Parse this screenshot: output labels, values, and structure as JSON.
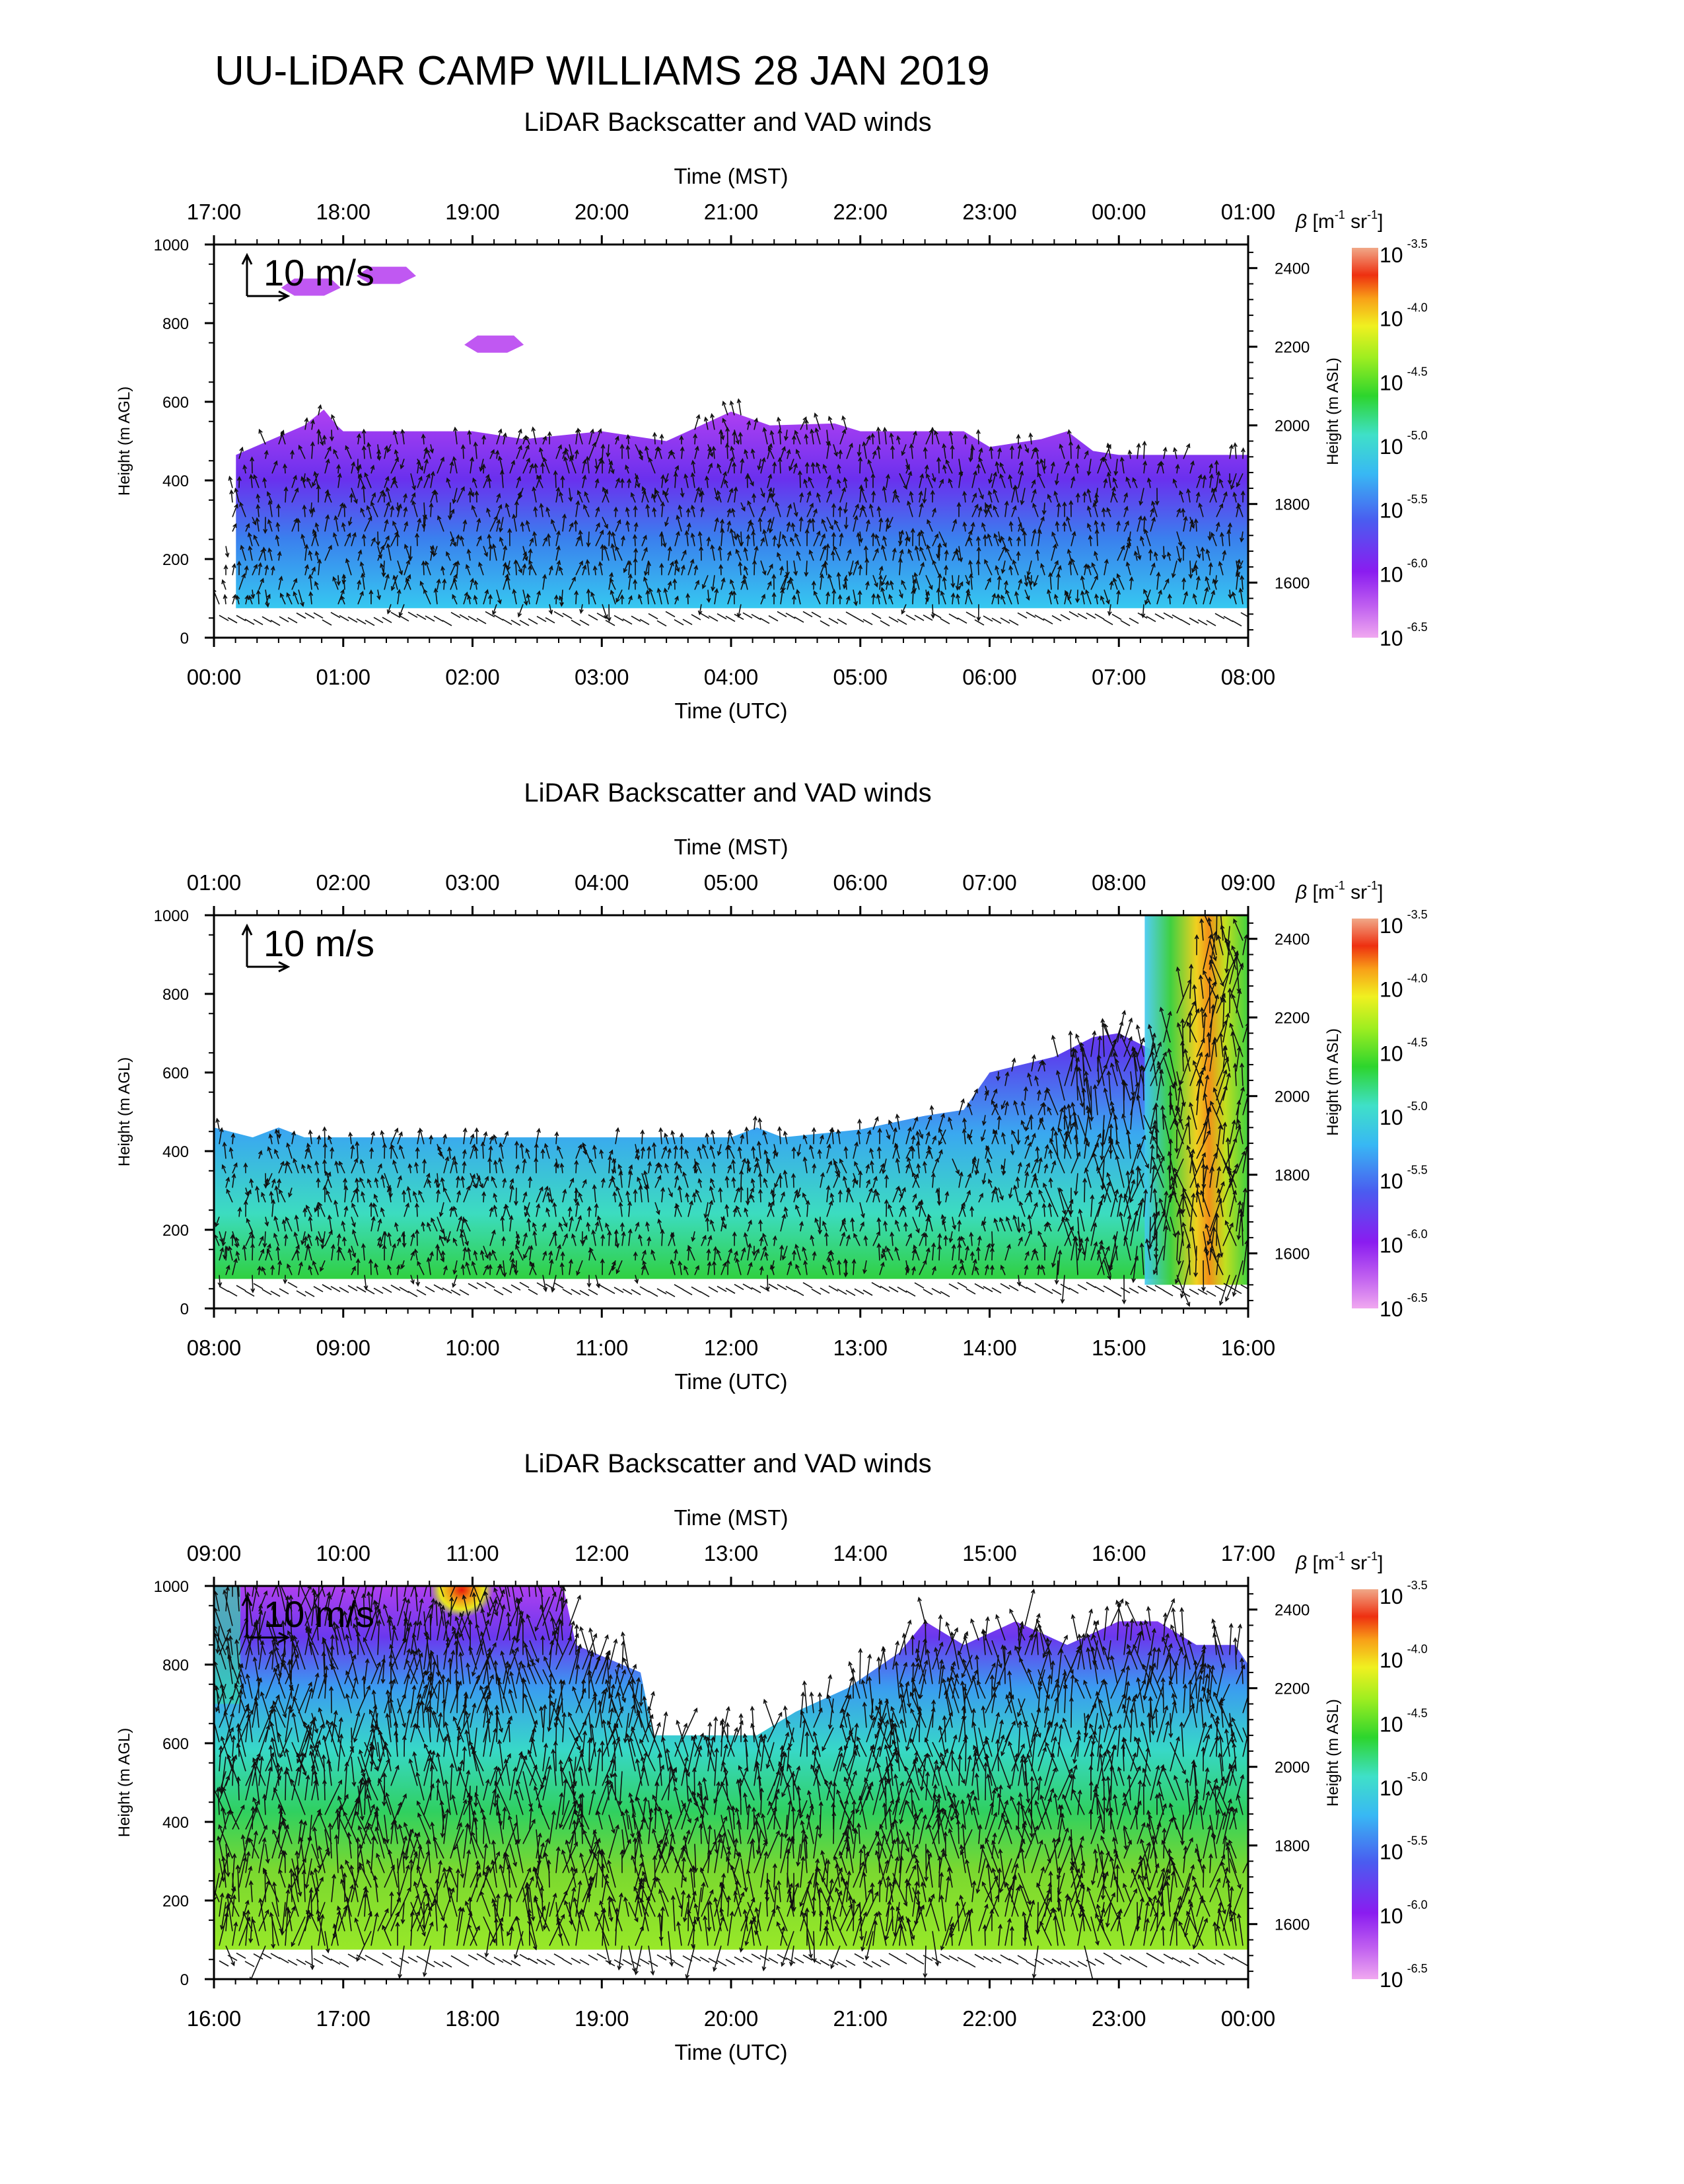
{
  "figure": {
    "title": "UU-LiDAR CAMP WILLIAMS 28 JAN 2019"
  },
  "chart_data": [
    {
      "type": "heatmap",
      "title": "LiDAR Backscatter and VAD winds",
      "xlabel": "Time (UTC)",
      "x2label": "Time (MST)",
      "ylabel": "Height (m AGL)",
      "y2label": "Height (m ASL)",
      "xlim": [
        "00:00",
        "08:00"
      ],
      "ylim": [
        0,
        1000
      ],
      "y2lim": [
        1460,
        2460
      ],
      "x_ticks": [
        "00:00",
        "01:00",
        "02:00",
        "03:00",
        "04:00",
        "05:00",
        "06:00",
        "07:00",
        "08:00"
      ],
      "x2_ticks": [
        "17:00",
        "18:00",
        "19:00",
        "20:00",
        "21:00",
        "22:00",
        "23:00",
        "00:00",
        "01:00"
      ],
      "y_ticks": [
        0,
        200,
        400,
        600,
        800,
        1000
      ],
      "y2_ticks": [
        1600,
        1800,
        2000,
        2200,
        2400
      ],
      "wind_scale_label": "10 m/s",
      "colorbar": {
        "label": "β [m-1 sr-1]",
        "base": "10",
        "exponents": [
          "-3.5",
          "-4.0",
          "-4.5",
          "-5.0",
          "-5.5",
          "-6.0",
          "-6.5"
        ],
        "scale": "log",
        "range": [
          -6.5,
          -3.5
        ]
      },
      "backscatter_top_m": [
        [
          0.0,
          0
        ],
        [
          0.17,
          465
        ],
        [
          0.7,
          540
        ],
        [
          0.85,
          580
        ],
        [
          0.95,
          540
        ],
        [
          1.0,
          525
        ],
        [
          2.0,
          525
        ],
        [
          2.4,
          505
        ],
        [
          3.0,
          525
        ],
        [
          3.5,
          500
        ],
        [
          3.8,
          545
        ],
        [
          4.0,
          575
        ],
        [
          4.3,
          540
        ],
        [
          4.8,
          545
        ],
        [
          5.0,
          525
        ],
        [
          5.8,
          525
        ],
        [
          6.0,
          485
        ],
        [
          6.4,
          505
        ],
        [
          6.6,
          525
        ],
        [
          6.8,
          475
        ],
        [
          7.0,
          465
        ],
        [
          8.0,
          465
        ]
      ],
      "backscatter_base_m": 75,
      "aloft_patches": [
        {
          "time_utc": "00:45",
          "height_m": 890
        },
        {
          "time_utc": "01:20",
          "height_m": 920
        },
        {
          "time_utc": "02:10",
          "height_m": 745
        }
      ],
      "wind_vectors": "mostly northerly-pointing arrows (~2-6 m/s) 75-550 m"
    },
    {
      "type": "heatmap",
      "title": "LiDAR Backscatter and VAD winds",
      "xlabel": "Time (UTC)",
      "x2label": "Time (MST)",
      "ylabel": "Height (m AGL)",
      "y2label": "Height (m ASL)",
      "xlim": [
        "08:00",
        "16:00"
      ],
      "ylim": [
        0,
        1000
      ],
      "y2lim": [
        1460,
        2460
      ],
      "x_ticks": [
        "08:00",
        "09:00",
        "10:00",
        "11:00",
        "12:00",
        "13:00",
        "14:00",
        "15:00",
        "16:00"
      ],
      "x2_ticks": [
        "01:00",
        "02:00",
        "03:00",
        "04:00",
        "05:00",
        "06:00",
        "07:00",
        "08:00",
        "09:00"
      ],
      "y_ticks": [
        0,
        200,
        400,
        600,
        800,
        1000
      ],
      "y2_ticks": [
        1600,
        1800,
        2000,
        2200,
        2400
      ],
      "wind_scale_label": "10 m/s",
      "colorbar": {
        "label": "β [m-1 sr-1]",
        "base": "10",
        "exponents": [
          "-3.5",
          "-4.0",
          "-4.5",
          "-5.0",
          "-5.5",
          "-6.0",
          "-6.5"
        ],
        "scale": "log",
        "range": [
          -6.5,
          -3.5
        ]
      },
      "backscatter_top_m": [
        [
          0.0,
          460
        ],
        [
          0.3,
          435
        ],
        [
          0.5,
          460
        ],
        [
          0.7,
          435
        ],
        [
          4.0,
          435
        ],
        [
          4.2,
          460
        ],
        [
          4.4,
          435
        ],
        [
          5.0,
          455
        ],
        [
          5.5,
          490
        ],
        [
          5.8,
          505
        ],
        [
          6.0,
          600
        ],
        [
          6.5,
          640
        ],
        [
          6.8,
          690
        ],
        [
          7.0,
          700
        ],
        [
          7.3,
          650
        ],
        [
          7.7,
          1000
        ],
        [
          8.0,
          1000
        ]
      ],
      "backscatter_base_m": 75,
      "plume_feature": {
        "time_utc": "15:40",
        "peak_exponent": -4.2,
        "height_range_m": [
          100,
          1000
        ]
      },
      "wind_vectors": "northerly arrows in stable layer; strong variable arrows near 15:00-16:00"
    },
    {
      "type": "heatmap",
      "title": "LiDAR Backscatter and VAD winds",
      "xlabel": "Time (UTC)",
      "x2label": "Time (MST)",
      "ylabel": "Height (m AGL)",
      "y2label": "Height (m ASL)",
      "xlim": [
        "16:00",
        "00:00"
      ],
      "ylim": [
        0,
        1000
      ],
      "y2lim": [
        1460,
        2460
      ],
      "x_ticks": [
        "16:00",
        "17:00",
        "18:00",
        "19:00",
        "20:00",
        "21:00",
        "22:00",
        "23:00",
        "00:00"
      ],
      "x2_ticks": [
        "09:00",
        "10:00",
        "11:00",
        "12:00",
        "13:00",
        "14:00",
        "15:00",
        "16:00",
        "17:00"
      ],
      "y_ticks": [
        0,
        200,
        400,
        600,
        800,
        1000
      ],
      "y2_ticks": [
        1600,
        1800,
        2000,
        2200,
        2400
      ],
      "wind_scale_label": "10 m/s",
      "colorbar": {
        "label": "β [m-1 sr-1]",
        "base": "10",
        "exponents": [
          "-3.5",
          "-4.0",
          "-4.5",
          "-5.0",
          "-5.5",
          "-6.0",
          "-6.5"
        ],
        "scale": "log",
        "range": [
          -6.5,
          -3.5
        ]
      },
      "backscatter_top_m": [
        [
          0.0,
          1000
        ],
        [
          2.7,
          1000
        ],
        [
          2.8,
          850
        ],
        [
          3.3,
          780
        ],
        [
          3.4,
          620
        ],
        [
          4.2,
          620
        ],
        [
          4.5,
          680
        ],
        [
          4.9,
          740
        ],
        [
          5.3,
          830
        ],
        [
          5.5,
          910
        ],
        [
          5.8,
          850
        ],
        [
          6.2,
          910
        ],
        [
          6.6,
          850
        ],
        [
          7.0,
          910
        ],
        [
          7.3,
          910
        ],
        [
          7.6,
          850
        ],
        [
          7.9,
          850
        ],
        [
          8.0,
          800
        ]
      ],
      "backscatter_base_m": 75,
      "hotspot": {
        "time_utc": "17:55",
        "height_m": 990,
        "peak_exponent": -4.0
      },
      "wind_vectors": "dense strong northerly/southerly arrows 75-900 m throughout"
    }
  ]
}
